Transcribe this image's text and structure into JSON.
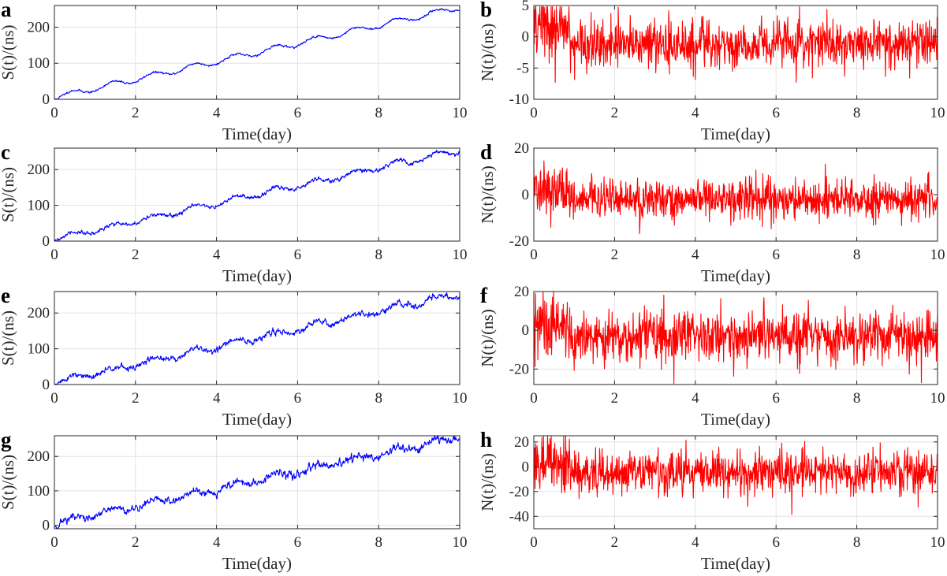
{
  "colors": {
    "signal": "#0000ff",
    "noise": "#ff0000"
  },
  "chart_data": [
    {
      "panel": "a",
      "type": "line",
      "series_kind": "signal",
      "color": "#0000ff",
      "noise_amp": 2,
      "seed": 11,
      "x_range": [
        0,
        10
      ],
      "ylim": [
        0,
        260
      ],
      "xticks": [
        0,
        2,
        4,
        6,
        8,
        10
      ],
      "yticks": [
        0,
        100,
        200
      ],
      "xlabel": "Time(day)",
      "ylabel": "S(t)/(ns)",
      "description": "Linear trend ~25 ns/day (0 to ~255) with daily sinusoidal oscillation, amplitude ~8 ns"
    },
    {
      "panel": "b",
      "type": "line",
      "series_kind": "noise",
      "color": "#ff0000",
      "noise_amp": 1.9,
      "seed": 21,
      "x_range": [
        0,
        10
      ],
      "ylim": [
        -10,
        5
      ],
      "xticks": [
        0,
        2,
        4,
        6,
        8,
        10
      ],
      "yticks": [
        -10,
        -5,
        0,
        5
      ],
      "xlabel": "Time(day)",
      "ylabel": "N(t)/(ns)",
      "description": "Noise around -1 ns, extremes ~+5 and ~-7"
    },
    {
      "panel": "c",
      "type": "line",
      "series_kind": "signal",
      "color": "#0000ff",
      "noise_amp": 4,
      "seed": 31,
      "x_range": [
        0,
        10
      ],
      "ylim": [
        0,
        260
      ],
      "xticks": [
        0,
        2,
        4,
        6,
        8,
        10
      ],
      "yticks": [
        0,
        100,
        200
      ],
      "xlabel": "Time(day)",
      "ylabel": "S(t)/(ns)",
      "description": "Linear trend 0 to ~250 with daily oscillation and more noise"
    },
    {
      "panel": "d",
      "type": "line",
      "series_kind": "noise",
      "color": "#ff0000",
      "noise_amp": 4.2,
      "seed": 41,
      "x_range": [
        0,
        10
      ],
      "ylim": [
        -20,
        20
      ],
      "xticks": [
        0,
        2,
        4,
        6,
        8,
        10
      ],
      "yticks": [
        -20,
        0,
        20
      ],
      "xlabel": "Time(day)",
      "ylabel": "N(t)/(ns)",
      "description": "Noise around -2 ns, extremes ~+13 and ~-17"
    },
    {
      "panel": "e",
      "type": "line",
      "series_kind": "signal",
      "color": "#0000ff",
      "noise_amp": 6,
      "seed": 51,
      "x_range": [
        0,
        10
      ],
      "ylim": [
        0,
        260
      ],
      "xticks": [
        0,
        2,
        4,
        6,
        8,
        10
      ],
      "yticks": [
        0,
        100,
        200
      ],
      "xlabel": "Time(day)",
      "ylabel": "S(t)/(ns)",
      "description": "Linear trend 0 to ~250, noisier"
    },
    {
      "panel": "f",
      "type": "line",
      "series_kind": "noise",
      "color": "#ff0000",
      "noise_amp": 6.5,
      "seed": 61,
      "x_range": [
        0,
        10
      ],
      "ylim": [
        -28,
        20
      ],
      "xticks": [
        0,
        2,
        4,
        6,
        8,
        10
      ],
      "yticks": [
        -20,
        0,
        20
      ],
      "xlabel": "Time(day)",
      "ylabel": "N(t)/(ns)",
      "description": "Noise around -3 ns, extremes ~+20 and ~-28"
    },
    {
      "panel": "g",
      "type": "line",
      "series_kind": "signal",
      "color": "#0000ff",
      "noise_amp": 8,
      "seed": 71,
      "x_range": [
        0,
        10
      ],
      "ylim": [
        -10,
        260
      ],
      "xticks": [
        0,
        2,
        4,
        6,
        8,
        10
      ],
      "yticks": [
        0,
        100,
        200
      ],
      "xlabel": "Time(day)",
      "ylabel": "S(t)/(ns)",
      "description": "Linear trend 0 to ~250, noisiest"
    },
    {
      "panel": "h",
      "type": "line",
      "series_kind": "noise",
      "color": "#ff0000",
      "noise_amp": 8.5,
      "seed": 81,
      "x_range": [
        0,
        10
      ],
      "ylim": [
        -50,
        25
      ],
      "xticks": [
        0,
        2,
        4,
        6,
        8,
        10
      ],
      "yticks": [
        -40,
        -20,
        0,
        20
      ],
      "xlabel": "Time(day)",
      "ylabel": "N(t)/(ns)",
      "description": "Noise around -4 ns, extremes ~+25 and ~-35"
    }
  ]
}
